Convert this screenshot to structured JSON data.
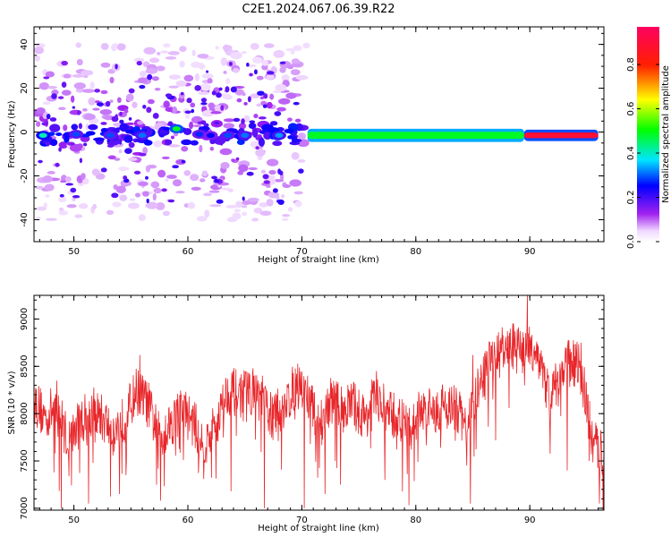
{
  "title": "C2E1.2024.067.06.39.R22",
  "chart_data": [
    {
      "type": "heatmap",
      "xlabel": "Height of straight line (km)",
      "ylabel": "Frequency (Hz)",
      "xlim": [
        46.5,
        96.5
      ],
      "ylim": [
        -50,
        48
      ],
      "xticks": [
        50,
        60,
        70,
        80,
        90
      ],
      "yticks": [
        -40,
        -20,
        0,
        20,
        40
      ],
      "colorbar": {
        "label": "Normalized spectral amplitude",
        "range": [
          0,
          0.97
        ],
        "ticks": [
          0.0,
          0.2,
          0.4,
          0.6,
          0.8
        ]
      },
      "bands": [
        {
          "x_start": 70.5,
          "x_end": 89.5,
          "y_center": -1.5,
          "half_width": 3,
          "value": 0.35
        },
        {
          "x_start": 70.5,
          "x_end": 89.5,
          "y_center": -1.5,
          "half_width": 1.6,
          "value": 0.5
        },
        {
          "x_start": 89.5,
          "x_end": 96,
          "y_center": -1.5,
          "half_width": 2.6,
          "value": 0.3
        },
        {
          "x_start": 89.5,
          "x_end": 96,
          "y_center": -1.5,
          "half_width": 1.3,
          "value": 0.92
        }
      ],
      "blobs": [
        {
          "x": 47.3,
          "y": -1.5,
          "value": 0.42
        },
        {
          "x": 50.2,
          "y": -1,
          "value": 0.3
        },
        {
          "x": 53.2,
          "y": -1.5,
          "value": 0.3
        },
        {
          "x": 56.0,
          "y": -1.5,
          "value": 0.32
        },
        {
          "x": 59.0,
          "y": 1.5,
          "value": 0.5
        },
        {
          "x": 61.0,
          "y": -1,
          "value": 0.28
        },
        {
          "x": 62.0,
          "y": -1.5,
          "value": 0.26
        },
        {
          "x": 63.5,
          "y": -1.5,
          "value": 0.3
        },
        {
          "x": 65.0,
          "y": -1.5,
          "value": 0.32
        },
        {
          "x": 68.0,
          "y": -1.5,
          "value": 0.34
        }
      ]
    },
    {
      "type": "line",
      "xlabel": "Height of straight line (km)",
      "ylabel": "SNR (10 * v/v)",
      "xlim": [
        46.5,
        96.5
      ],
      "ylim": [
        6980,
        9250
      ],
      "xticks": [
        50,
        60,
        70,
        80,
        90
      ],
      "yticks": [
        7000,
        7500,
        8000,
        8500,
        9000
      ],
      "color": "#e8262a",
      "series": [
        {
          "x": [
            46.5,
            47.5,
            48.5,
            49.5,
            50.5,
            51.5,
            52.5,
            53.5,
            54.5,
            55.5,
            56.5,
            57.5,
            58.5,
            59.5,
            60.5,
            61.5,
            62.5,
            63.5,
            64.5,
            65.5,
            66.5,
            67.5,
            68.5,
            69.5,
            70.5,
            71.5,
            72.5,
            73.5,
            74.5,
            75.5,
            76.5,
            77.5,
            78.5,
            79.5,
            80.5,
            81.5,
            82.5,
            83.5,
            84.5,
            85.5,
            86.5,
            87.5,
            88.5,
            89.5,
            90.5,
            91.5,
            92.5,
            93.5,
            94.5,
            95.5,
            96.5
          ],
          "y": [
            8150,
            7950,
            8100,
            7700,
            7900,
            8050,
            7950,
            7800,
            7950,
            8250,
            8100,
            7750,
            7900,
            8050,
            7900,
            7650,
            7900,
            8250,
            8200,
            8250,
            8150,
            7950,
            8100,
            8300,
            8200,
            7850,
            8150,
            8050,
            8100,
            7950,
            8200,
            8000,
            7950,
            7800,
            8050,
            8000,
            8100,
            8050,
            7850,
            8250,
            8550,
            8650,
            8700,
            8650,
            8700,
            8250,
            8300,
            8600,
            8450,
            7700,
            7550
          ],
          "dips": [
            {
              "x": 48.9,
              "y": 7000
            },
            {
              "x": 51.3,
              "y": 7050
            },
            {
              "x": 54.0,
              "y": 7150
            },
            {
              "x": 57.6,
              "y": 7080
            },
            {
              "x": 63.8,
              "y": 7180
            },
            {
              "x": 66.7,
              "y": 7000
            },
            {
              "x": 70.2,
              "y": 7000
            },
            {
              "x": 73.4,
              "y": 7250
            },
            {
              "x": 77.3,
              "y": 7300
            },
            {
              "x": 84.8,
              "y": 7050
            },
            {
              "x": 93.3,
              "y": 7400
            },
            {
              "x": 96.1,
              "y": 7050
            }
          ],
          "peaks": [
            {
              "x": 55.8,
              "y": 8620
            },
            {
              "x": 85.0,
              "y": 8620
            },
            {
              "x": 89.8,
              "y": 9250
            },
            {
              "x": 94.5,
              "y": 8750
            }
          ]
        }
      ]
    }
  ]
}
